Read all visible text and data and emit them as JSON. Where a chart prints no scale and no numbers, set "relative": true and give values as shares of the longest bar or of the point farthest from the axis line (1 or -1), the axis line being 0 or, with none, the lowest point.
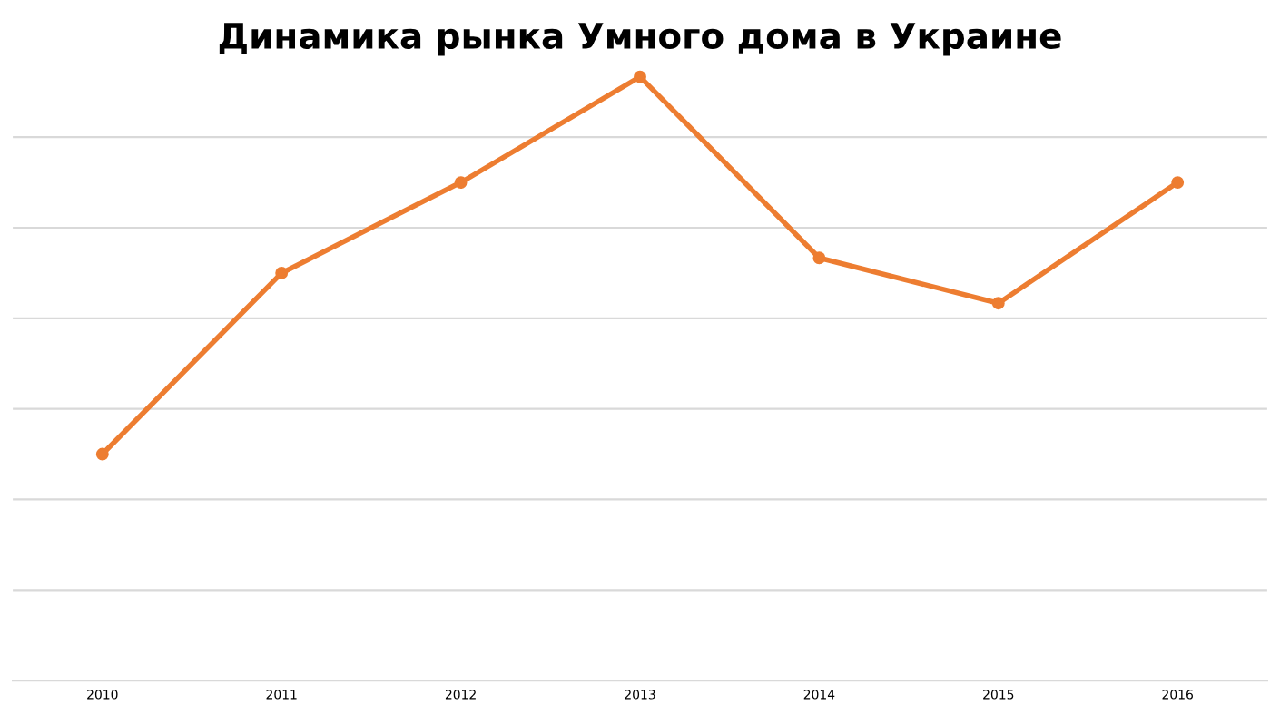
{
  "chart_data": {
    "type": "line",
    "title": "Динамика рынка Умного дома в Украине",
    "categories": [
      "2010",
      "2011",
      "2012",
      "2013",
      "2014",
      "2015",
      "2016"
    ],
    "series": [
      {
        "color": "#ed7d31",
        "values": [
          0.375,
          0.675,
          0.825,
          1,
          0.7,
          0.625,
          0.825
        ]
      }
    ],
    "relative": true,
    "grid": "y",
    "marker": "circle",
    "line_style": "solid"
  }
}
